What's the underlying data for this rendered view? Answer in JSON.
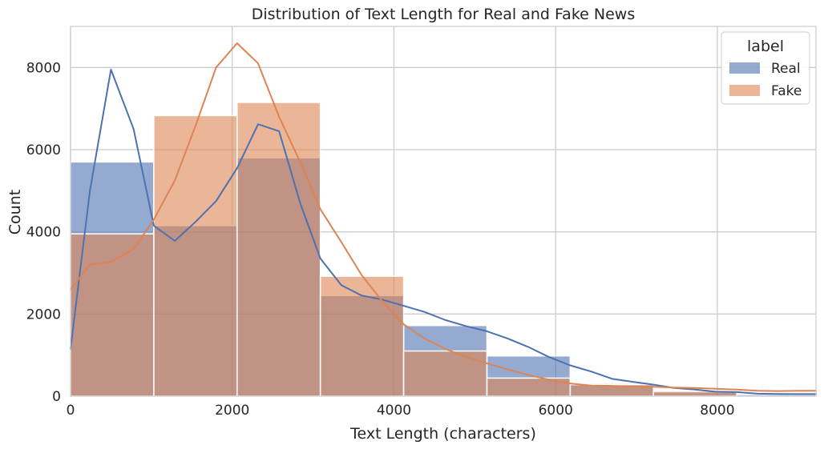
{
  "chart_data": {
    "type": "bar",
    "title": "Distribution of Text Length for Real and Fake News",
    "xlabel": "Text Length (characters)",
    "ylabel": "Count",
    "xlim": [
      0,
      9220
    ],
    "ylim": [
      0,
      9000
    ],
    "xticks": [
      0,
      2000,
      4000,
      6000,
      8000
    ],
    "yticks": [
      0,
      2000,
      4000,
      6000,
      8000
    ],
    "grid": true,
    "bin_edges": [
      0,
      1030,
      2060,
      3090,
      4120,
      5150,
      6180,
      7210,
      8240,
      9270
    ],
    "legend": {
      "title": "label",
      "position": "top-right"
    },
    "series": [
      {
        "name": "Real",
        "color": "#4C72B0",
        "values": [
          5700,
          4150,
          5800,
          2450,
          1720,
          980,
          310,
          100,
          40
        ],
        "kde": {
          "x": [
            0,
            240,
            500,
            780,
            1030,
            1290,
            1550,
            1800,
            2060,
            2320,
            2580,
            2840,
            3090,
            3350,
            3600,
            3860,
            4120,
            4380,
            4640,
            4900,
            5150,
            5410,
            5660,
            5920,
            6180,
            6440,
            6700,
            6950,
            7210,
            7470,
            7730,
            7980,
            8240,
            8500,
            8750,
            9010,
            9220
          ],
          "y": [
            1150,
            5000,
            7950,
            6500,
            4150,
            3780,
            4250,
            4750,
            5550,
            6620,
            6450,
            4700,
            3350,
            2700,
            2450,
            2350,
            2200,
            2050,
            1850,
            1700,
            1580,
            1400,
            1200,
            950,
            750,
            600,
            420,
            350,
            280,
            200,
            160,
            110,
            100,
            60,
            55,
            50,
            50
          ]
        }
      },
      {
        "name": "Fake",
        "color": "#DD8452",
        "values": [
          3950,
          6830,
          7150,
          2920,
          1100,
          440,
          280,
          120,
          0
        ],
        "kde": {
          "x": [
            0,
            240,
            500,
            780,
            1030,
            1290,
            1550,
            1800,
            2060,
            2320,
            2580,
            2840,
            3090,
            3350,
            3600,
            3860,
            4120,
            4380,
            4640,
            4900,
            5150,
            5410,
            5660,
            5920,
            6180,
            6440,
            6700,
            6950,
            7210,
            7470,
            7730,
            7980,
            8240,
            8500,
            8750,
            9010,
            9220
          ],
          "y": [
            2600,
            3200,
            3270,
            3580,
            4300,
            5250,
            6600,
            8000,
            8590,
            8100,
            6800,
            5700,
            4550,
            3750,
            2950,
            2300,
            1750,
            1400,
            1150,
            950,
            800,
            650,
            520,
            400,
            310,
            260,
            250,
            240,
            230,
            210,
            200,
            180,
            160,
            130,
            125,
            130,
            130
          ]
        }
      }
    ]
  }
}
